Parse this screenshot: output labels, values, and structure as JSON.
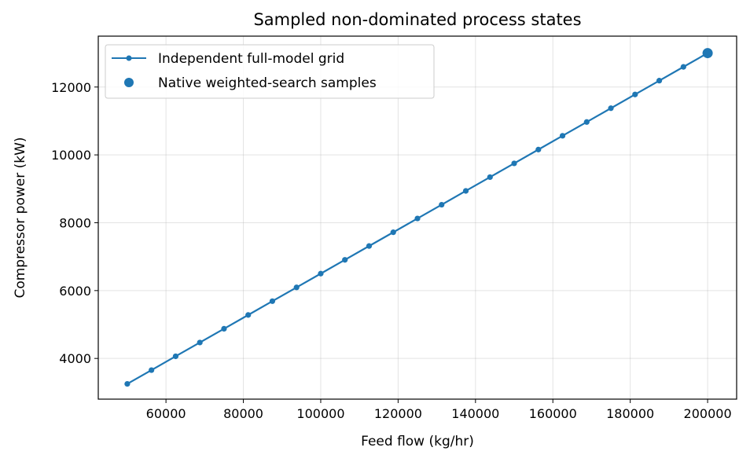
{
  "chart_data": {
    "type": "line",
    "title": "Sampled non-dominated process states",
    "xlabel": "Feed flow (kg/hr)",
    "ylabel": "Compressor power (kW)",
    "xlim": [
      42500,
      207500
    ],
    "ylim": [
      2800,
      13500
    ],
    "xticks": [
      60000,
      80000,
      100000,
      120000,
      140000,
      160000,
      180000,
      200000
    ],
    "yticks": [
      4000,
      6000,
      8000,
      10000,
      12000
    ],
    "grid": true,
    "legend_position": "top-left",
    "series": [
      {
        "name": "Independent full-model grid",
        "kind": "line-marker",
        "color": "#1f77b4",
        "x": [
          50000,
          56250,
          62500,
          68750,
          75000,
          81250,
          87500,
          93750,
          100000,
          106250,
          112500,
          118750,
          125000,
          131250,
          137500,
          143750,
          150000,
          156250,
          162500,
          168750,
          175000,
          181250,
          187500,
          193750,
          200000
        ],
        "y": [
          3250,
          3656,
          4063,
          4469,
          4875,
          5281,
          5688,
          6094,
          6500,
          6906,
          7313,
          7719,
          8125,
          8531,
          8938,
          9344,
          9750,
          10156,
          10563,
          10969,
          11375,
          11781,
          12188,
          12594,
          13000
        ]
      },
      {
        "name": "Native weighted-search samples",
        "kind": "scatter",
        "color": "#1f77b4",
        "x": [
          200000
        ],
        "y": [
          13000
        ]
      }
    ]
  }
}
